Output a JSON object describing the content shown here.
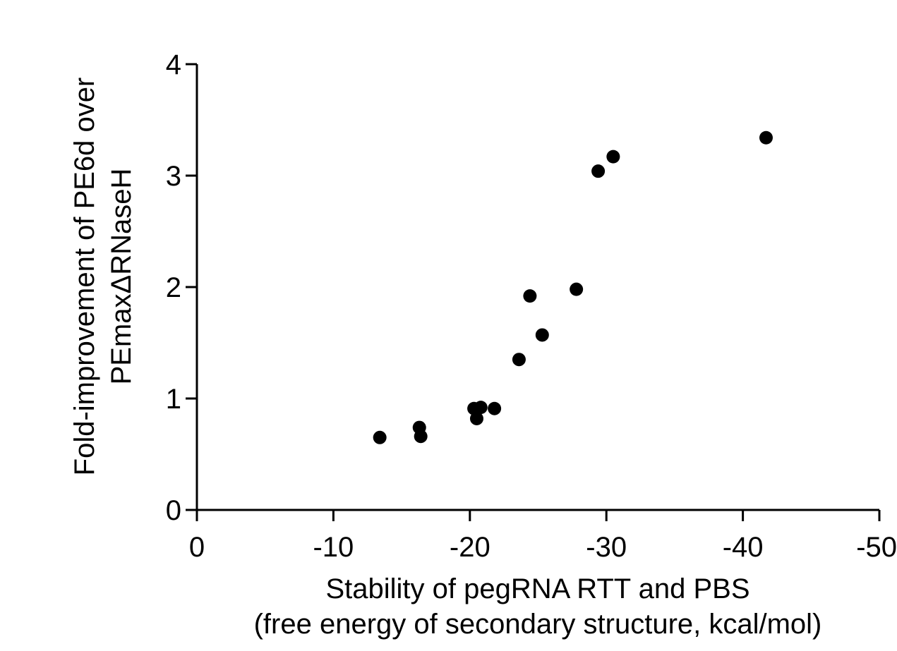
{
  "chart_data": {
    "type": "scatter",
    "xlabel_line1": "Stability of pegRNA RTT and PBS",
    "xlabel_line2": "(free energy of secondary structure, kcal/mol)",
    "ylabel_line1": "Fold-improvement of PE6d over",
    "ylabel_line2": "PEmaxΔRNaseH",
    "xlim": [
      0,
      -50
    ],
    "ylim": [
      0,
      4
    ],
    "xticks": [
      0,
      -10,
      -20,
      -30,
      -40,
      -50
    ],
    "xtick_labels": [
      "0",
      "-10",
      "-20",
      "-30",
      "-40",
      "-50"
    ],
    "yticks": [
      0,
      1,
      2,
      3,
      4
    ],
    "ytick_labels": [
      "0",
      "1",
      "2",
      "3",
      "4"
    ],
    "points": [
      {
        "x": -13.4,
        "y": 0.65
      },
      {
        "x": -16.3,
        "y": 0.74
      },
      {
        "x": -16.4,
        "y": 0.66
      },
      {
        "x": -20.3,
        "y": 0.91
      },
      {
        "x": -20.5,
        "y": 0.82
      },
      {
        "x": -20.8,
        "y": 0.92
      },
      {
        "x": -21.8,
        "y": 0.91
      },
      {
        "x": -23.6,
        "y": 1.35
      },
      {
        "x": -24.4,
        "y": 1.92
      },
      {
        "x": -25.3,
        "y": 1.57
      },
      {
        "x": -27.8,
        "y": 1.98
      },
      {
        "x": -29.4,
        "y": 3.04
      },
      {
        "x": -30.5,
        "y": 3.17
      },
      {
        "x": -41.7,
        "y": 3.34
      }
    ],
    "marker_color": "#000000",
    "grid": false,
    "legend": "none"
  }
}
